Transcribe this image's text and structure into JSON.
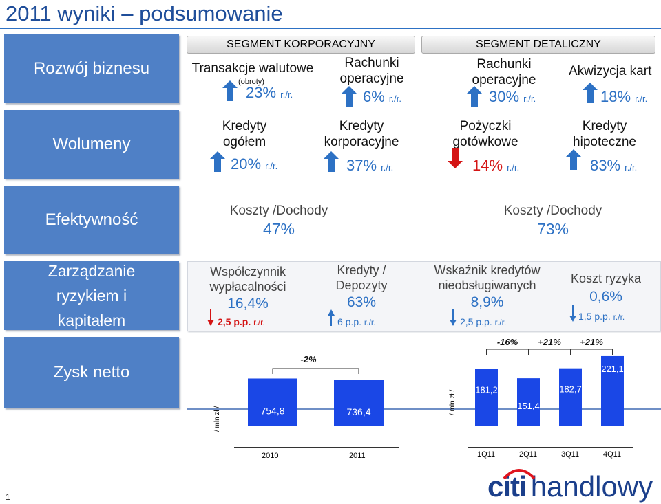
{
  "title": "2011 wyniki – podsumowanie",
  "sections": {
    "rozwoj": "Rozwój biznesu",
    "wolumeny": "Wolumeny",
    "efekt": "Efektywność",
    "ryzyko": [
      "Zarządzanie",
      "ryzykiem i",
      "kapitałem"
    ],
    "zysk": "Zysk netto"
  },
  "segments": {
    "korp": "SEGMENT KORPORACYJNY",
    "det": "SEGMENT DETALICZNY"
  },
  "rozwoj_items": [
    {
      "label": "Transakcje walutowe",
      "sub": "(obroty)",
      "value": "23%",
      "unit": "r./r."
    },
    {
      "label1": "Rachunki",
      "label2": "operacyjne",
      "value": "6%",
      "unit": "r./r."
    },
    {
      "label1": "Rachunki",
      "label2": "operacyjne",
      "value": "30%",
      "unit": "r./r."
    },
    {
      "label": "Akwizycja kart",
      "value": "18%",
      "unit": "r./r."
    }
  ],
  "wolumeny_items": [
    {
      "label1": "Kredyty",
      "label2": "ogółem",
      "value": "20%",
      "unit": "r./r."
    },
    {
      "label1": "Kredyty",
      "label2": "korporacyjne",
      "value": "37%",
      "unit": "r./r."
    },
    {
      "label1": "Pożyczki",
      "label2": "gotówkowe",
      "value": "14%",
      "unit": "r./r."
    },
    {
      "label1": "Kredyty",
      "label2": "hipoteczne",
      "value": "83%",
      "unit": "r./r."
    }
  ],
  "efekt_items": [
    {
      "label": "Koszty /Dochody",
      "value": "47%"
    },
    {
      "label": "Koszty /Dochody",
      "value": "73%"
    }
  ],
  "ryzyko_items": [
    {
      "label1": "Współczynnik",
      "label2": "wypłacalności",
      "value": "16,4%",
      "change": "2,5 p.p.",
      "unit": "r./r."
    },
    {
      "label1": "Kredyty /",
      "label2": "Depozyty",
      "value": "63%",
      "change": "6 p.p.",
      "unit": "r./r."
    },
    {
      "label1": "Wskaźnik kredytów",
      "label2": "nieobsługiwanych",
      "value": "8,9%",
      "change": "2,5 p.p.",
      "unit": "r./r."
    },
    {
      "label1": "Koszt ryzyka",
      "value": "0,6%",
      "change": "1,5 p.p.",
      "unit": "r./r."
    }
  ],
  "colors": {
    "accent": "#4f80c6",
    "value": "#2d71c4",
    "bar": "#1a47e6",
    "up": "#2d71c4",
    "down": "#d41515"
  },
  "chart_data": [
    {
      "type": "bar",
      "ylabel": "/ mln zł /",
      "categories": [
        "2010",
        "2011"
      ],
      "values": [
        754.8,
        736.4
      ],
      "value_labels": [
        "754,8",
        "736,4"
      ],
      "annotations": [
        "-2%"
      ]
    },
    {
      "type": "bar",
      "ylabel": "/ mln zł /",
      "categories": [
        "1Q11",
        "2Q11",
        "3Q11",
        "4Q11"
      ],
      "values": [
        181.2,
        151.4,
        182.7,
        221.1
      ],
      "value_labels": [
        "181,2",
        "151,4",
        "182,7",
        "221,1"
      ],
      "annotations": [
        "-16%",
        "+21%",
        "+21%"
      ]
    }
  ],
  "footer": {
    "page": "1",
    "logo_text": "handlowy",
    "logo_citi": "citi"
  }
}
